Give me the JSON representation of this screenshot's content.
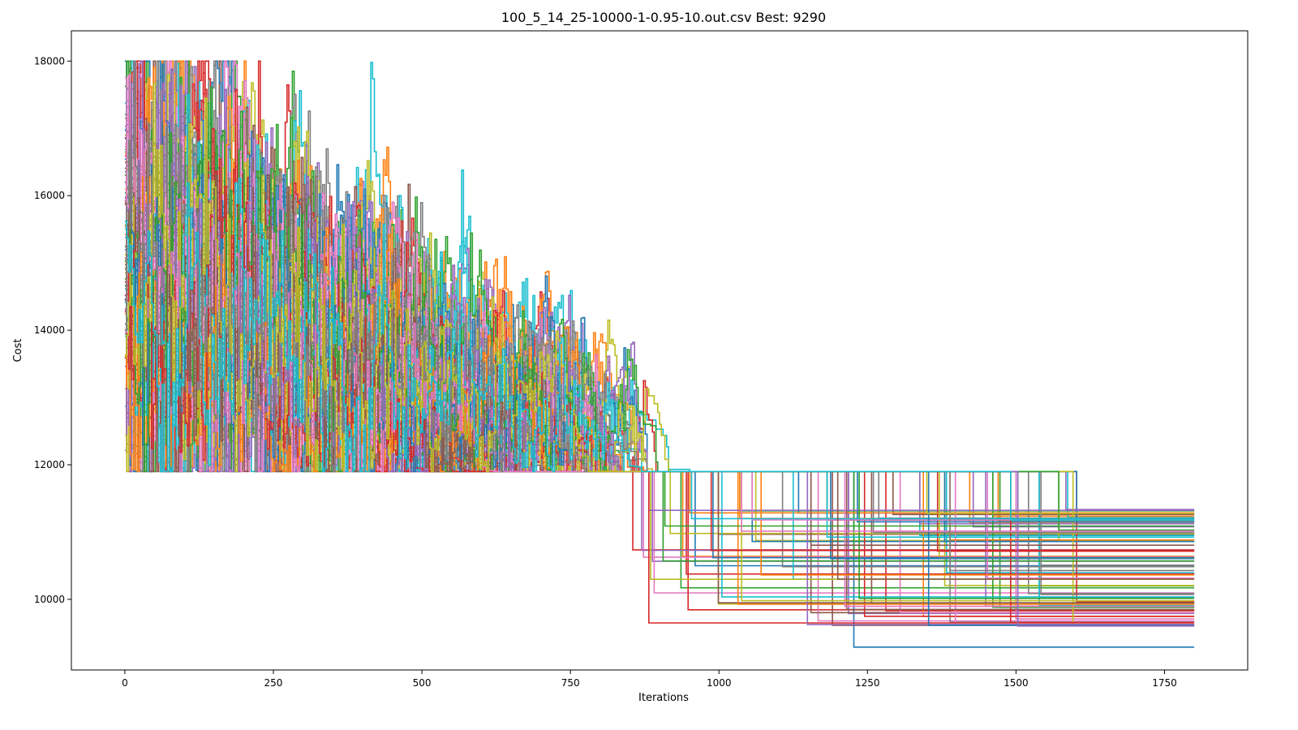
{
  "chart_data": {
    "type": "line",
    "title": "100_5_14_25-10000-1-0.95-10.out.csv Best: 9290",
    "xlabel": "Iterations",
    "ylabel": "Cost",
    "xlim": [
      -90,
      1890
    ],
    "ylim": [
      8950,
      18450
    ],
    "x_ticks": [
      0,
      250,
      500,
      750,
      1000,
      1250,
      1500,
      1750
    ],
    "y_ticks": [
      10000,
      12000,
      14000,
      16000,
      18000
    ],
    "grid": false,
    "legend": "none",
    "n_series": 100,
    "iterations": 1800,
    "palette": [
      "#1f77b4",
      "#ff7f0e",
      "#2ca02c",
      "#d62728",
      "#9467bd",
      "#8c564b",
      "#e377c2",
      "#7f7f7f",
      "#bcbd22",
      "#17becf"
    ],
    "best": 9290,
    "final_cost_range": [
      9290,
      11350
    ],
    "start_cost_range": [
      13300,
      17400
    ],
    "min_cost_early": 11900,
    "max_cost_early": 18000
  }
}
